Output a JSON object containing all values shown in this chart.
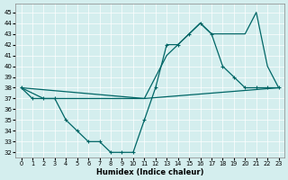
{
  "xlabel": "Humidex (Indice chaleur)",
  "bg_color": "#d4eeee",
  "line_color": "#006666",
  "xlim": [
    -0.5,
    23.5
  ],
  "ylim": [
    31.5,
    45.8
  ],
  "yticks": [
    32,
    33,
    34,
    35,
    36,
    37,
    38,
    39,
    40,
    41,
    42,
    43,
    44,
    45
  ],
  "xticks": [
    0,
    1,
    2,
    3,
    4,
    5,
    6,
    7,
    8,
    9,
    10,
    11,
    12,
    13,
    14,
    15,
    16,
    17,
    18,
    19,
    20,
    21,
    22,
    23
  ],
  "line1_x": [
    0,
    1,
    2,
    3,
    4,
    5,
    6,
    7,
    8,
    9,
    10,
    11,
    12,
    13,
    14,
    15,
    16,
    17,
    18,
    19,
    20,
    21,
    22,
    23
  ],
  "line1_y": [
    38,
    37,
    37,
    37,
    35,
    34,
    33,
    33,
    32,
    32,
    32,
    35,
    38,
    42,
    42,
    43,
    44,
    43,
    40,
    39,
    38,
    38,
    38,
    38
  ],
  "line2_x": [
    0,
    11,
    13,
    14,
    15,
    16,
    17,
    19,
    20,
    21,
    22,
    23
  ],
  "line2_y": [
    38,
    37,
    41,
    42,
    43,
    44,
    43,
    43,
    43,
    45,
    40,
    38
  ],
  "line3_x": [
    0,
    2,
    3,
    11,
    23
  ],
  "line3_y": [
    38,
    37,
    37,
    37,
    38
  ]
}
